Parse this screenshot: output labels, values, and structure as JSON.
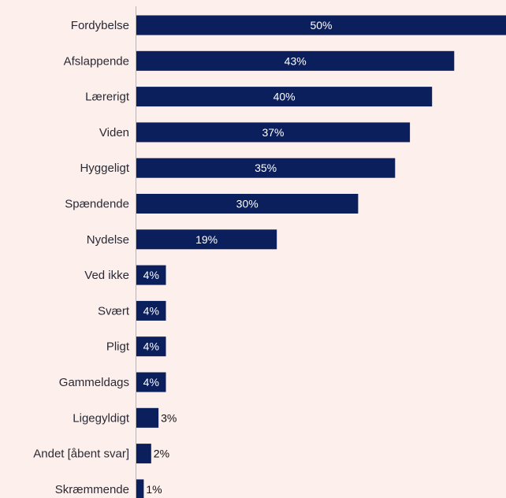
{
  "chart_data": {
    "type": "bar",
    "orientation": "horizontal",
    "title": "",
    "xlabel": "",
    "ylabel": "",
    "value_suffix": "%",
    "xlim": [
      0,
      50
    ],
    "grid": false,
    "legend": "none",
    "bar_color": "#0b1f5c",
    "background_color": "#fdefec",
    "categories": [
      "Fordybelse",
      "Afslappende",
      "Lærerigt",
      "Viden",
      "Hyggeligt",
      "Spændende",
      "Nydelse",
      "Ved ikke",
      "Svært",
      "Pligt",
      "Gammeldags",
      "Ligegyldigt",
      "Andet [åbent svar]",
      "Skræmmende"
    ],
    "values": [
      50,
      43,
      40,
      37,
      35,
      30,
      19,
      4,
      4,
      4,
      4,
      3,
      2,
      1
    ],
    "value_labels": [
      "50%",
      "43%",
      "40%",
      "37%",
      "35%",
      "30%",
      "19%",
      "4%",
      "4%",
      "4%",
      "4%",
      "3%",
      "2%",
      "1%"
    ]
  }
}
